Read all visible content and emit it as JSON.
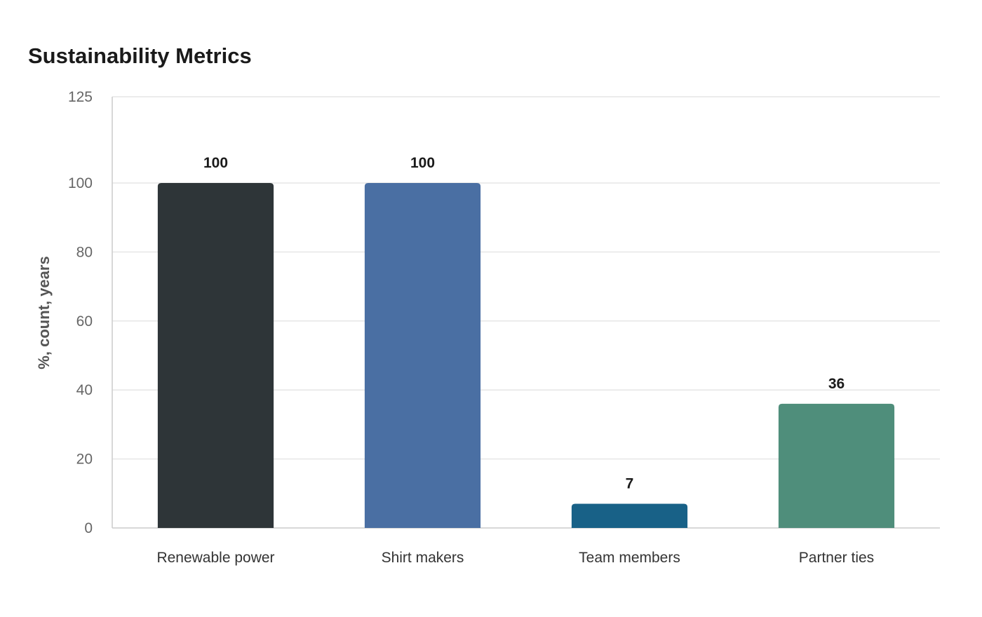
{
  "chart_data": {
    "type": "bar",
    "title": "Sustainability Metrics",
    "xlabel": "",
    "ylabel": "%, count, years",
    "ylim": [
      0,
      125
    ],
    "yticks": [
      0,
      20,
      40,
      60,
      80,
      100,
      125
    ],
    "grid": true,
    "legend": "none",
    "categories": [
      "Renewable power",
      "Shirt makers",
      "Team members",
      "Partner ties"
    ],
    "values": [
      100,
      100,
      7,
      36
    ],
    "colors": [
      "#2e3538",
      "#4a6fa3",
      "#186187",
      "#4f8e7b"
    ],
    "data_labels": [
      "100",
      "100",
      "7",
      "36"
    ]
  }
}
